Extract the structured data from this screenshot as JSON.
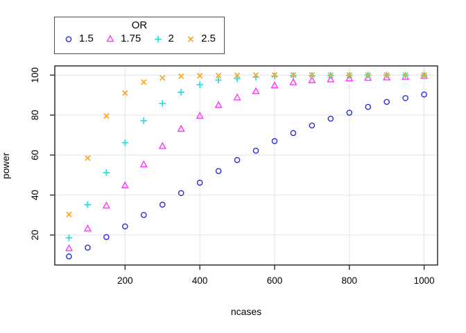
{
  "chart_data": {
    "type": "scatter",
    "title": "",
    "xlabel": "ncases",
    "ylabel": "power",
    "legend": {
      "title": "OR",
      "position": "top-left",
      "orientation": "horizontal"
    },
    "xlim": [
      12,
      1036
    ],
    "ylim": [
      5,
      104.6
    ],
    "grid": true,
    "x_ticks": [
      200,
      400,
      600,
      800,
      1000
    ],
    "y_ticks": [
      20,
      40,
      60,
      80,
      100
    ],
    "x_tick_labels": [
      "200",
      "400",
      "600",
      "800",
      "1000"
    ],
    "y_tick_labels": [
      "20",
      "40",
      "60",
      "80",
      "100"
    ],
    "x": [
      50,
      100,
      150,
      200,
      250,
      300,
      350,
      400,
      450,
      500,
      550,
      600,
      650,
      700,
      750,
      800,
      850,
      900,
      950,
      1000
    ],
    "series": [
      {
        "name": "1.5",
        "marker": "circle",
        "color": "#2a2ae6",
        "values": [
          9.3,
          13.7,
          19.0,
          24.3,
          30.0,
          35.2,
          41.0,
          46.2,
          52.0,
          57.5,
          62.2,
          67.0,
          71.0,
          74.8,
          78.2,
          81.2,
          84.1,
          86.6,
          88.5,
          90.3
        ]
      },
      {
        "name": "1.75",
        "marker": "triangle",
        "color": "#ff33ff",
        "values": [
          13.2,
          23.1,
          34.6,
          44.7,
          55.2,
          64.4,
          73.0,
          79.5,
          84.9,
          88.7,
          91.8,
          94.7,
          96.3,
          97.3,
          97.7,
          98.2,
          98.5,
          98.7,
          99.0,
          99.5
        ]
      },
      {
        "name": "2",
        "marker": "plus",
        "color": "#21dfdf",
        "values": [
          18.6,
          35.2,
          51.2,
          66.2,
          77.2,
          85.8,
          91.4,
          95.2,
          97.5,
          98.2,
          99.0,
          99.5,
          99.7,
          99.8,
          99.9,
          99.9,
          100,
          100,
          100,
          100
        ]
      },
      {
        "name": "2.5",
        "marker": "x",
        "color": "#ffa41f",
        "values": [
          30.3,
          58.5,
          79.6,
          91.0,
          96.5,
          98.6,
          99.4,
          99.7,
          99.8,
          99.9,
          100,
          100,
          100,
          100,
          100,
          100,
          100,
          100,
          100,
          100
        ]
      }
    ],
    "colors": {
      "grid": "#e4e4e4",
      "axis": "#1f1f1f",
      "text": "#000000",
      "background": "#ffffff"
    }
  }
}
